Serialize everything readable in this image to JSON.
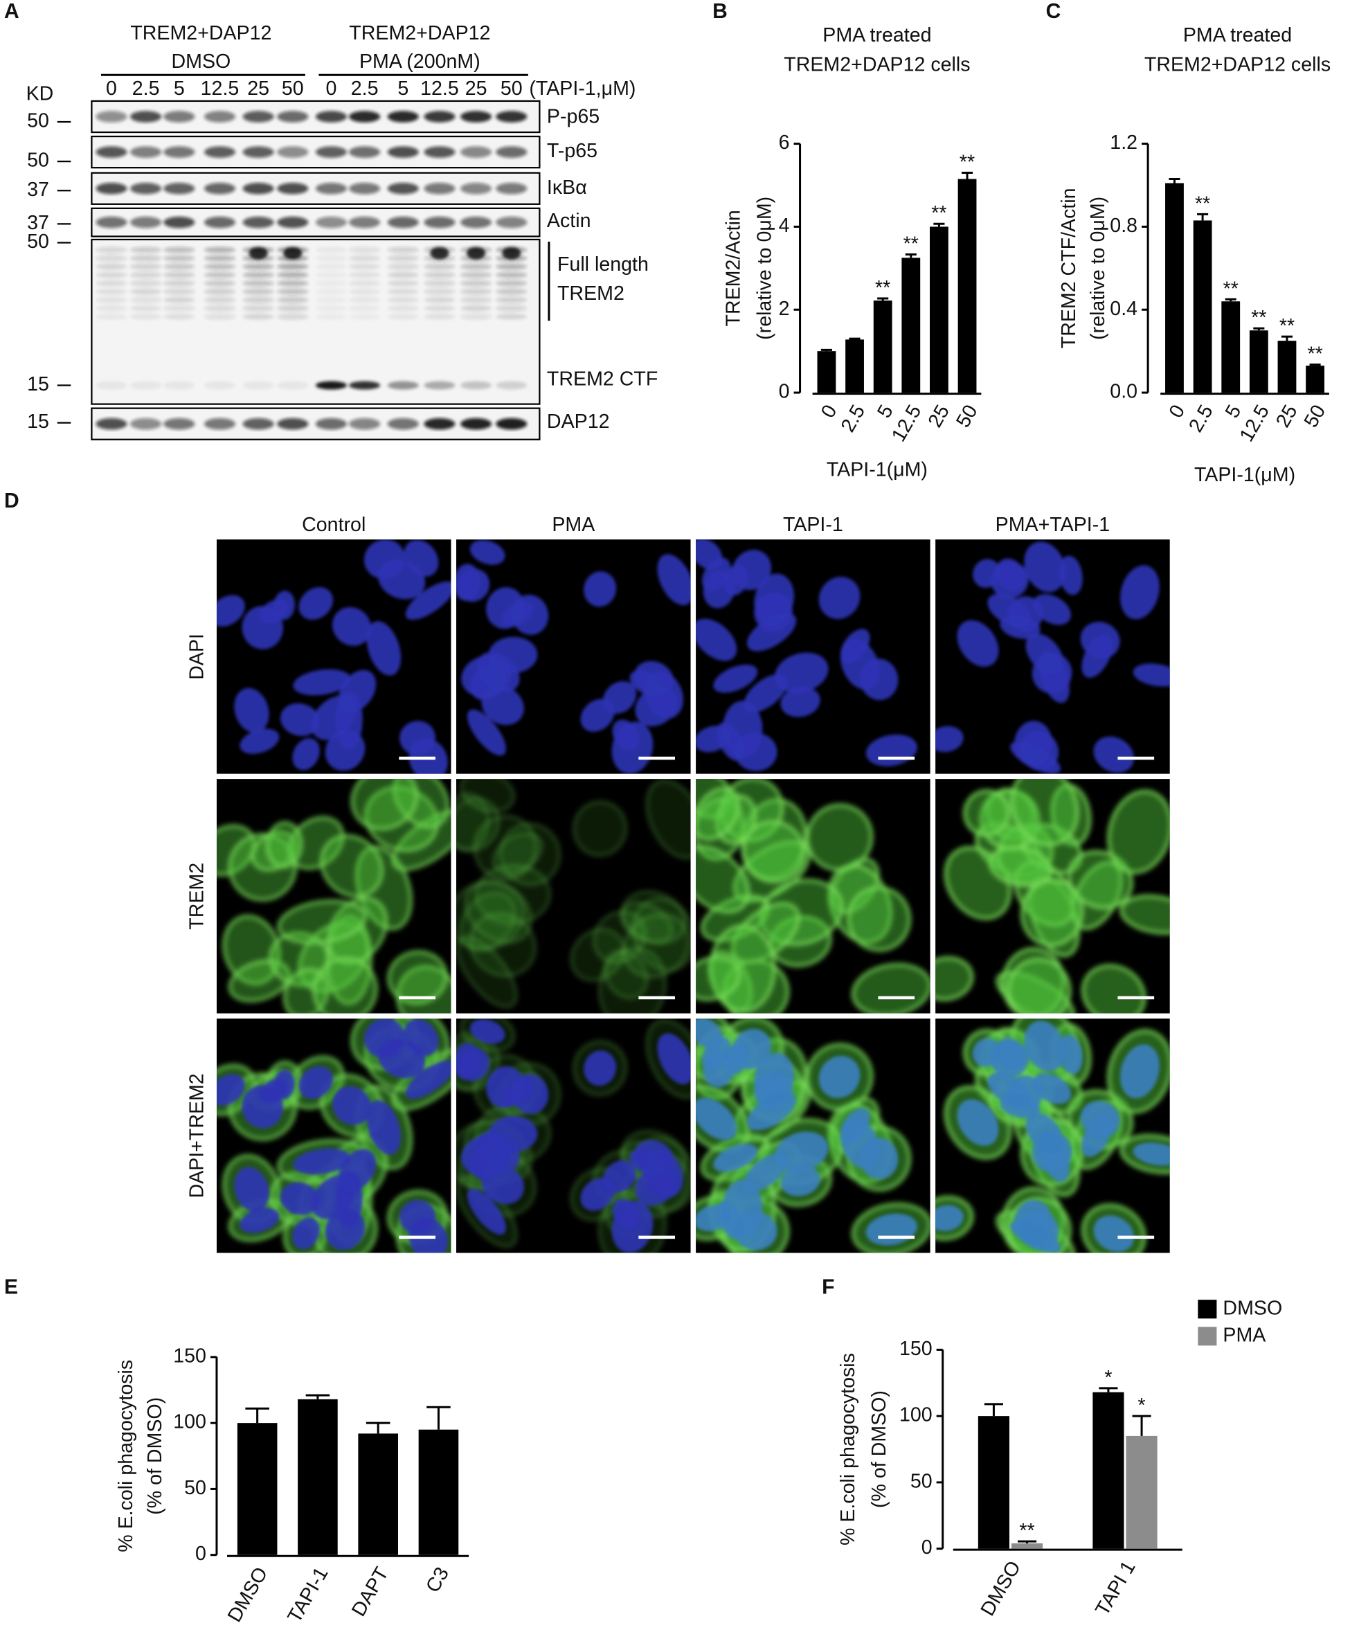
{
  "panel_labels": [
    "A",
    "B",
    "C",
    "D",
    "E",
    "F"
  ],
  "blot": {
    "groups": [
      {
        "line1": "TREM2+DAP12",
        "line2": "DMSO"
      },
      {
        "line1": "TREM2+DAP12",
        "line2": "PMA (200nM)"
      }
    ],
    "lanes": [
      "0",
      "2.5",
      "5",
      "12.5",
      "25",
      "50",
      "0",
      "2.5",
      "5",
      "12.5",
      "25",
      "50"
    ],
    "lane_unit": "(TAPI-1,μM)",
    "kd_label": "KD",
    "markers": [
      "50",
      "50",
      "37",
      "37",
      "50",
      "15",
      "15"
    ],
    "labels": [
      "P-p65",
      "T-p65",
      "IκBα",
      "Actin",
      "Full length",
      "TREM2",
      "TREM2 CTF",
      "DAP12"
    ]
  },
  "microscopy": {
    "columns": [
      "Control",
      "PMA",
      "TAPI-1",
      "PMA+TAPI-1"
    ],
    "rows": [
      "DAPI",
      "TREM2",
      "DAPI+TREM2"
    ]
  },
  "chart_data": [
    {
      "type": "bar",
      "title": [
        "PMA treated",
        "TREM2+DAP12 cells"
      ],
      "ylabel": [
        "TREM2/Actin",
        "(relative to 0μM)"
      ],
      "xlabel": "TAPI-1(μM)",
      "categories": [
        "0",
        "2.5",
        "5",
        "12.5",
        "25",
        "50"
      ],
      "values": [
        1.0,
        1.28,
        2.22,
        3.25,
        4.0,
        5.15
      ],
      "errors": [
        0.03,
        0.02,
        0.05,
        0.08,
        0.07,
        0.15
      ],
      "annotations": [
        null,
        null,
        "**",
        "**",
        "**",
        "**"
      ],
      "color": "#000000",
      "ylim": [
        0,
        6
      ],
      "yticks": [
        0,
        2,
        4,
        6
      ]
    },
    {
      "type": "bar",
      "title": [
        "PMA treated",
        "TREM2+DAP12 cells"
      ],
      "ylabel": [
        "TREM2 CTF/Actin",
        "(relative to 0μM)"
      ],
      "xlabel": "TAPI-1(μM)",
      "categories": [
        "0",
        "2.5",
        "5",
        "12.5",
        "25",
        "50"
      ],
      "values": [
        1.01,
        0.83,
        0.44,
        0.3,
        0.25,
        0.13
      ],
      "errors": [
        0.02,
        0.03,
        0.01,
        0.01,
        0.02,
        0.005
      ],
      "annotations": [
        null,
        "**",
        "**",
        "**",
        "**",
        "**"
      ],
      "color": "#000000",
      "ylim": [
        0,
        1.2
      ],
      "yticks": [
        {
          "value": 0,
          "label": "0.0"
        },
        0.4,
        0.8,
        1.2
      ]
    },
    {
      "type": "bar",
      "ylabel": [
        "% E.coli phagocytosis",
        "(% of DMSO)"
      ],
      "categories": [
        "DMSO",
        "TAPI-1",
        "DAPT",
        "C3"
      ],
      "values": [
        100,
        118,
        92,
        95
      ],
      "errors": [
        11,
        3,
        8,
        17
      ],
      "color": "#000000",
      "ylim": [
        0,
        150
      ],
      "yticks": [
        0,
        50,
        100,
        150
      ]
    },
    {
      "type": "grouped_bar",
      "ylabel": [
        "% E.coli phagocytosis",
        "(% of DMSO)"
      ],
      "categories": [
        "DMSO",
        "TAPI 1"
      ],
      "legend": "top-right",
      "series": [
        {
          "name": "DMSO",
          "color": "#000000",
          "values": [
            100,
            118
          ],
          "errors": [
            9,
            3
          ],
          "annotations": [
            null,
            "*"
          ]
        },
        {
          "name": "PMA",
          "color": "#8c8c8c",
          "values": [
            4,
            85
          ],
          "errors": [
            1.5,
            15
          ],
          "annotations": [
            "**",
            "*"
          ]
        }
      ],
      "ylim": [
        0,
        150
      ],
      "yticks": [
        0,
        50,
        100,
        150
      ]
    }
  ]
}
